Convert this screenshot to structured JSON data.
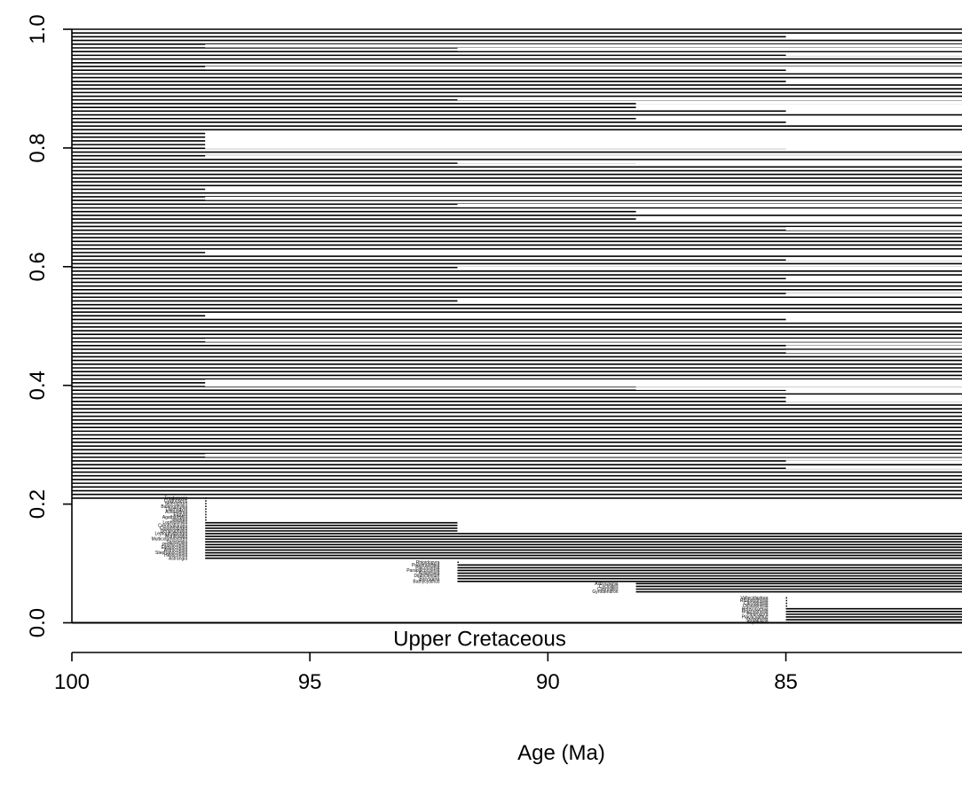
{
  "chart_data": {
    "type": "timescale-range-plot",
    "xlabel": "Age (Ma)",
    "ylabel": "",
    "xlim": [
      100,
      81.3
    ],
    "ylim": [
      -0.05,
      1.0
    ],
    "x_reversed": true,
    "x_ticks": [
      100,
      95,
      90,
      85
    ],
    "x_tick_labels": [
      "100",
      "95",
      "90",
      "85"
    ],
    "y_ticks": [
      0.0,
      0.2,
      0.4,
      0.6,
      0.8,
      1.0
    ],
    "y_tick_labels": [
      "0.0",
      "0.2",
      "0.4",
      "0.6",
      "0.8",
      "1.0"
    ],
    "stage_band": {
      "label": "Upper Cretaceous",
      "top": 0.0,
      "bottom": -0.05
    },
    "long_ranging_block": {
      "first_appearance": 100,
      "y_bottom": 0.21,
      "y_top": 1.0
    },
    "gap_ages": [
      97.2,
      91.9,
      88.15,
      85.0
    ],
    "gaps": [
      {
        "y": 0.987,
        "age": 85.0
      },
      {
        "y": 0.972,
        "age": 97.2
      },
      {
        "y": 0.966,
        "age": 91.9
      },
      {
        "y": 0.958,
        "age": 85.0
      },
      {
        "y": 0.935,
        "age": 97.2
      },
      {
        "y": 0.93,
        "age": 85.0
      },
      {
        "y": 0.912,
        "age": 85.0
      },
      {
        "y": 0.883,
        "age": 91.9
      },
      {
        "y": 0.876,
        "age": 88.15
      },
      {
        "y": 0.868,
        "age": 88.15
      },
      {
        "y": 0.862,
        "age": 85.0
      },
      {
        "y": 0.851,
        "age": 88.15
      },
      {
        "y": 0.843,
        "age": 85.0
      },
      {
        "y": 0.8135,
        "age": 97.2,
        "height": 0.03
      },
      {
        "y": 0.806,
        "age": 88.15
      },
      {
        "y": 0.8,
        "age": 85.0
      },
      {
        "y": 0.785,
        "age": 97.2
      },
      {
        "y": 0.776,
        "age": 91.9
      },
      {
        "y": 0.772,
        "age": 88.15
      },
      {
        "y": 0.73,
        "age": 97.2
      },
      {
        "y": 0.715,
        "age": 97.2
      },
      {
        "y": 0.703,
        "age": 91.9
      },
      {
        "y": 0.694,
        "age": 88.15
      },
      {
        "y": 0.68,
        "age": 88.15
      },
      {
        "y": 0.664,
        "age": 85.0
      },
      {
        "y": 0.625,
        "age": 97.2
      },
      {
        "y": 0.613,
        "age": 85.0
      },
      {
        "y": 0.597,
        "age": 91.9
      },
      {
        "y": 0.58,
        "age": 85.0
      },
      {
        "y": 0.553,
        "age": 85.0
      },
      {
        "y": 0.541,
        "age": 91.9
      },
      {
        "y": 0.518,
        "age": 97.2
      },
      {
        "y": 0.51,
        "age": 85.0
      },
      {
        "y": 0.476,
        "age": 97.2
      },
      {
        "y": 0.465,
        "age": 85.0
      },
      {
        "y": 0.457,
        "age": 85.0
      },
      {
        "y": 0.404,
        "age": 97.2,
        "height": 0.012
      },
      {
        "y": 0.395,
        "age": 88.15
      },
      {
        "y": 0.39,
        "age": 85.0
      },
      {
        "y": 0.377,
        "age": 85.0,
        "height": 0.01
      },
      {
        "y": 0.282,
        "age": 97.2
      },
      {
        "y": 0.271,
        "age": 85.0
      },
      {
        "y": 0.262,
        "age": 85.0
      }
    ],
    "groups": [
      {
        "first_appearance": 97.2,
        "labels": [
          "Trochoseris",
          "Cyathoseris",
          "Siderastrea",
          "Balanophyllia",
          "Lasmogyra",
          "Actinastrea",
          "Eugyra",
          "Agathiphyllia",
          "Isastrea",
          "Lophiosmilia",
          "Crenmatiaraea",
          "Columnastrea",
          "Dendrophyllia",
          "Leptophyllastrea",
          "Montlivaltia",
          "Multicolumnastrea",
          "Stylosmilia",
          "Phyllocoenia",
          "Ellipsocoenia",
          "Astrocoenia",
          "Stephanocoenia",
          "Heliocoenia",
          "Astrangia"
        ],
        "lasts": [
          null,
          null,
          null,
          null,
          null,
          null,
          null,
          null,
          null,
          91.9,
          91.9,
          91.9,
          91.9,
          "end",
          "end",
          "end",
          "end",
          "end",
          "end",
          "end",
          "end",
          "end",
          "end"
        ]
      },
      {
        "first_appearance": 91.9,
        "labels": [
          "Rhipidogyra",
          "Preverastraea",
          "Placocoenia",
          "Paraplacocoenia",
          "Aulastraea",
          "Diploctenium",
          "Barysmilia",
          "Bathycyathus"
        ],
        "lasts": [
          null,
          "end",
          "end",
          "end",
          "end",
          "end",
          "end",
          "end"
        ]
      },
      {
        "first_appearance": 88.15,
        "labels": [
          "Astrocoenia",
          "Cyclolites",
          "Cunnolites",
          "Gyrodendron"
        ],
        "lasts": [
          "end",
          "end",
          "end",
          "end"
        ]
      },
      {
        "first_appearance": 85.0,
        "labels": [
          "Vallecidastrea",
          "Rhabdophyllia",
          "Caryophyllia",
          "Dictuophyllia",
          "Heterocoenia",
          "Brachyphyllia",
          "Pleurocora",
          "Placocyathus",
          "Stylophyllia",
          "Aspidiscus"
        ],
        "lasts": [
          null,
          null,
          null,
          null,
          "end",
          "end",
          "end",
          "end",
          "end",
          "end"
        ]
      }
    ]
  }
}
